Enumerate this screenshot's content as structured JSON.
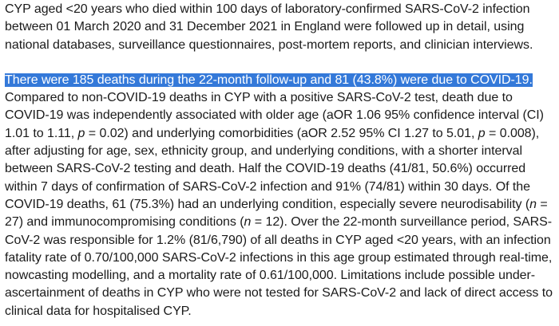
{
  "document": {
    "paragraph1": "CYP aged <20 years who died within 100 days of laboratory-confirmed SARS-CoV-2 infection between 01 March 2020 and 31 December 2021 in England were followed up in detail, using national databases, surveillance questionnaires, post-mortem reports, and clinician interviews.",
    "paragraph2": {
      "highlighted": "There were 185 deaths during the 22-month follow-up and 81 (43.8%) were due to COVID-19.",
      "s1": " Compared to non-COVID-19 deaths in CYP with a positive SARS-CoV-2 test, death due to COVID-19 was independently associated with older age (aOR 1.06 95% confidence interval (CI) 1.01 to 1.11, ",
      "p1": "p",
      "s2": " = 0.02) and underlying comorbidities (aOR 2.52 95% CI 1.27 to 5.01, ",
      "p2": "p",
      "s3": " = 0.008), after adjusting for age, sex, ethnicity group, and underlying conditions, with a shorter interval between SARS-CoV-2 testing and death. Half the COVID-19 deaths (41/81, 50.6%) occurred within 7 days of confirmation of SARS-CoV-2 infection and 91% (74/81) within 30 days. Of the COVID-19 deaths, 61 (75.3%) had an underlying condition, especially severe neurodisability (",
      "n1": "n",
      "s4": " = 27) and immunocompromising conditions (",
      "n2": "n",
      "s5": " = 12). Over the 22-month surveillance period, SARS-CoV-2 was responsible for 1.2% (81/6,790) of all deaths in CYP aged <20 years, with an infection fatality rate of 0.70/100,000 SARS-CoV-2 infections in this age group estimated through real-time, nowcasting modelling, and a mortality rate of 0.61/100,000. Limitations include possible under-ascertainment of deaths in CYP who were not tested for SARS-CoV-2 and lack of direct access to clinical data for hospitalised CYP."
    }
  },
  "colors": {
    "selection_background": "#3479d9",
    "selection_text": "#ffffff",
    "body_text": "#1a1a1a"
  }
}
